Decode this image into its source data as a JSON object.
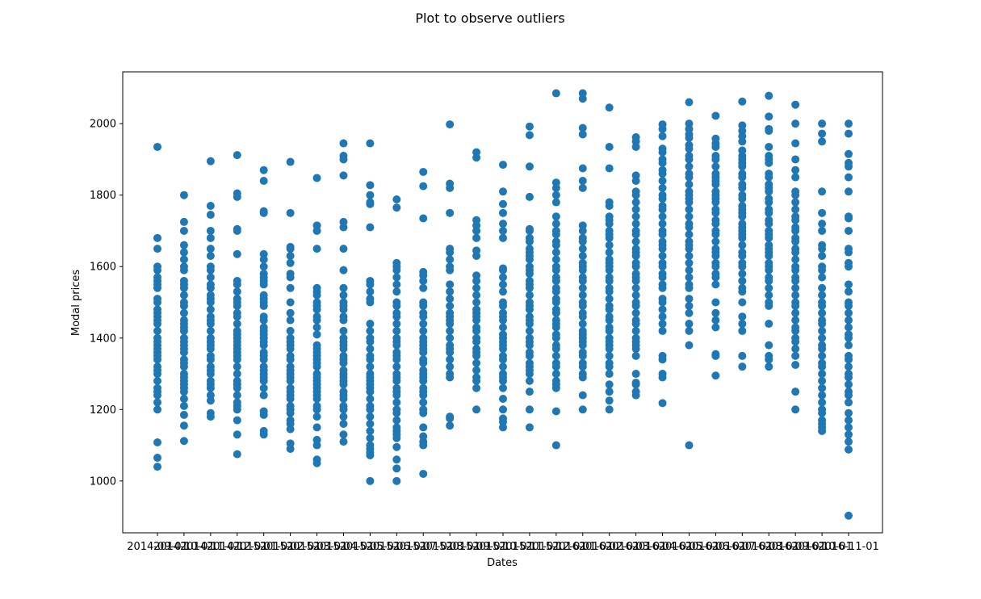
{
  "chart_data": {
    "type": "scatter",
    "title": "Plot to observe outliers",
    "xlabel": "Dates",
    "ylabel": "Modal prices",
    "ylim": [
      855,
      2145
    ],
    "yticks": [
      1000,
      1200,
      1400,
      1600,
      1800,
      2000
    ],
    "grid": false,
    "legend": "none",
    "color": "#1f77b4",
    "x_categories": [
      "2014-09-01",
      "2014-10-01",
      "2014-11-01",
      "2014-12-01",
      "2015-01-01",
      "2015-02-01",
      "2015-03-01",
      "2015-04-01",
      "2015-05-01",
      "2015-06-01",
      "2015-07-01",
      "2015-08-01",
      "2015-09-01",
      "2015-10-01",
      "2015-11-01",
      "2015-12-01",
      "2016-01-01",
      "2016-02-01",
      "2016-03-01",
      "2016-04-01",
      "2016-05-01",
      "2016-06-01",
      "2016-07-01",
      "2016-08-01",
      "2016-09-01",
      "2016-10-01",
      "2016-11-01"
    ],
    "x_tick_labels": [
      "2014-09-01",
      "2014-10-01",
      "2014-11-01",
      "2014-12-01",
      "2015-01-01",
      "2015-02-01",
      "2015-03-01",
      "2015-04-01",
      "2015-05-01",
      "2015-06-01",
      "2015-07-01",
      "2015-08-01",
      "2015-09-01",
      "2015-10-01",
      "2015-11-01",
      "2015-12-01",
      "2016-01-01",
      "2016-02-01",
      "2016-03-01",
      "2016-04-01",
      "2016-05-01",
      "2016-06-01",
      "2016-07-01",
      "2016-08-01",
      "2016-09-01",
      "2016-10-01",
      "2016-11-01"
    ],
    "columns": [
      {
        "x": "2014-09-01",
        "y": [
          1935,
          1680,
          1650,
          1600,
          1590,
          1570,
          1560,
          1550,
          1540,
          1510,
          1500,
          1480,
          1470,
          1460,
          1450,
          1440,
          1420,
          1400,
          1390,
          1380,
          1370,
          1360,
          1350,
          1340,
          1320,
          1310,
          1300,
          1280,
          1260,
          1250,
          1240,
          1220,
          1200,
          1108,
          1065,
          1040
        ]
      },
      {
        "x": "2014-10-01",
        "y": [
          1800,
          1725,
          1700,
          1660,
          1640,
          1620,
          1600,
          1590,
          1560,
          1550,
          1540,
          1520,
          1500,
          1490,
          1470,
          1450,
          1440,
          1430,
          1420,
          1400,
          1390,
          1380,
          1370,
          1360,
          1340,
          1330,
          1320,
          1300,
          1290,
          1280,
          1270,
          1260,
          1250,
          1230,
          1210,
          1185,
          1155,
          1112
        ]
      },
      {
        "x": "2014-11-01",
        "y": [
          1895,
          1770,
          1745,
          1700,
          1680,
          1650,
          1630,
          1600,
          1590,
          1570,
          1550,
          1540,
          1520,
          1510,
          1500,
          1480,
          1460,
          1450,
          1440,
          1420,
          1400,
          1390,
          1380,
          1370,
          1350,
          1340,
          1320,
          1310,
          1300,
          1280,
          1270,
          1260,
          1240,
          1225,
          1190,
          1180
        ]
      },
      {
        "x": "2014-12-01",
        "y": [
          1912,
          1805,
          1795,
          1705,
          1700,
          1635,
          1560,
          1550,
          1530,
          1510,
          1500,
          1490,
          1470,
          1460,
          1440,
          1420,
          1410,
          1400,
          1390,
          1380,
          1370,
          1360,
          1350,
          1340,
          1320,
          1300,
          1280,
          1270,
          1260,
          1240,
          1220,
          1210,
          1200,
          1170,
          1130,
          1075
        ]
      },
      {
        "x": "2015-01-01",
        "y": [
          1870,
          1840,
          1755,
          1750,
          1635,
          1620,
          1600,
          1580,
          1570,
          1560,
          1550,
          1520,
          1510,
          1500,
          1490,
          1460,
          1450,
          1430,
          1420,
          1410,
          1400,
          1390,
          1380,
          1360,
          1350,
          1340,
          1320,
          1310,
          1300,
          1290,
          1280,
          1260,
          1240,
          1195,
          1185,
          1140,
          1130
        ]
      },
      {
        "x": "2015-02-01",
        "y": [
          1893,
          1750,
          1655,
          1650,
          1630,
          1610,
          1580,
          1570,
          1540,
          1500,
          1470,
          1450,
          1420,
          1400,
          1390,
          1380,
          1370,
          1350,
          1340,
          1320,
          1310,
          1300,
          1290,
          1280,
          1260,
          1250,
          1240,
          1230,
          1210,
          1200,
          1190,
          1170,
          1160,
          1145,
          1105,
          1090
        ]
      },
      {
        "x": "2015-03-01",
        "y": [
          1848,
          1715,
          1700,
          1650,
          1540,
          1530,
          1520,
          1500,
          1490,
          1480,
          1460,
          1450,
          1430,
          1410,
          1380,
          1370,
          1360,
          1350,
          1340,
          1330,
          1320,
          1300,
          1290,
          1280,
          1270,
          1260,
          1250,
          1240,
          1230,
          1210,
          1200,
          1180,
          1150,
          1115,
          1100,
          1060,
          1050
        ]
      },
      {
        "x": "2015-04-01",
        "y": [
          1945,
          1910,
          1900,
          1855,
          1725,
          1710,
          1650,
          1590,
          1540,
          1520,
          1500,
          1490,
          1480,
          1460,
          1450,
          1420,
          1400,
          1390,
          1380,
          1370,
          1350,
          1340,
          1330,
          1310,
          1300,
          1290,
          1280,
          1270,
          1250,
          1240,
          1230,
          1210,
          1200,
          1180,
          1160,
          1130,
          1110
        ]
      },
      {
        "x": "2015-05-01",
        "y": [
          1945,
          1828,
          1800,
          1780,
          1775,
          1710,
          1560,
          1550,
          1530,
          1510,
          1500,
          1440,
          1420,
          1400,
          1390,
          1370,
          1350,
          1340,
          1320,
          1300,
          1290,
          1280,
          1270,
          1260,
          1250,
          1230,
          1210,
          1200,
          1180,
          1160,
          1140,
          1120,
          1100,
          1090,
          1080,
          1072,
          1000
        ]
      },
      {
        "x": "2015-06-01",
        "y": [
          1788,
          1765,
          1610,
          1600,
          1590,
          1570,
          1550,
          1530,
          1500,
          1490,
          1470,
          1460,
          1440,
          1420,
          1400,
          1390,
          1380,
          1360,
          1350,
          1340,
          1320,
          1300,
          1290,
          1280,
          1260,
          1250,
          1240,
          1220,
          1200,
          1190,
          1170,
          1150,
          1140,
          1130,
          1120,
          1095,
          1060,
          1035,
          1000
        ]
      },
      {
        "x": "2015-07-01",
        "y": [
          1865,
          1825,
          1735,
          1585,
          1575,
          1560,
          1540,
          1500,
          1490,
          1470,
          1460,
          1440,
          1420,
          1400,
          1390,
          1380,
          1370,
          1360,
          1340,
          1330,
          1310,
          1300,
          1290,
          1280,
          1260,
          1250,
          1240,
          1220,
          1200,
          1190,
          1150,
          1125,
          1110,
          1100,
          1020
        ]
      },
      {
        "x": "2015-08-01",
        "y": [
          1998,
          1832,
          1820,
          1750,
          1650,
          1640,
          1620,
          1600,
          1590,
          1550,
          1530,
          1510,
          1490,
          1470,
          1460,
          1450,
          1440,
          1420,
          1400,
          1380,
          1370,
          1360,
          1340,
          1320,
          1300,
          1290,
          1180,
          1175,
          1155
        ]
      },
      {
        "x": "2015-09-01",
        "y": [
          1920,
          1905,
          1730,
          1715,
          1700,
          1680,
          1645,
          1630,
          1575,
          1560,
          1540,
          1520,
          1500,
          1480,
          1470,
          1460,
          1450,
          1430,
          1420,
          1400,
          1390,
          1370,
          1360,
          1350,
          1330,
          1310,
          1290,
          1280,
          1260,
          1200
        ]
      },
      {
        "x": "2015-10-01",
        "y": [
          1885,
          1810,
          1775,
          1750,
          1720,
          1700,
          1680,
          1595,
          1590,
          1570,
          1550,
          1530,
          1500,
          1490,
          1470,
          1460,
          1450,
          1430,
          1410,
          1400,
          1390,
          1380,
          1370,
          1350,
          1340,
          1320,
          1300,
          1290,
          1280,
          1260,
          1230,
          1200,
          1175,
          1165,
          1150
        ]
      },
      {
        "x": "2015-11-01",
        "y": [
          1992,
          1968,
          1880,
          1795,
          1705,
          1700,
          1680,
          1670,
          1650,
          1640,
          1630,
          1620,
          1600,
          1590,
          1580,
          1560,
          1550,
          1540,
          1520,
          1500,
          1490,
          1480,
          1460,
          1450,
          1440,
          1420,
          1400,
          1390,
          1380,
          1360,
          1350,
          1330,
          1320,
          1310,
          1300,
          1280,
          1250,
          1200,
          1150
        ]
      },
      {
        "x": "2015-12-01",
        "y": [
          2085,
          1835,
          1820,
          1800,
          1780,
          1740,
          1720,
          1700,
          1690,
          1670,
          1660,
          1640,
          1620,
          1600,
          1590,
          1570,
          1560,
          1540,
          1530,
          1510,
          1500,
          1480,
          1470,
          1450,
          1440,
          1430,
          1410,
          1400,
          1380,
          1370,
          1350,
          1330,
          1320,
          1300,
          1280,
          1270,
          1260,
          1195,
          1100
        ]
      },
      {
        "x": "2016-01-01",
        "y": [
          2085,
          2070,
          1988,
          1970,
          1875,
          1840,
          1820,
          1715,
          1700,
          1680,
          1670,
          1650,
          1630,
          1610,
          1600,
          1590,
          1570,
          1560,
          1540,
          1520,
          1500,
          1490,
          1470,
          1460,
          1440,
          1420,
          1410,
          1400,
          1390,
          1380,
          1360,
          1350,
          1330,
          1320,
          1300,
          1290,
          1240,
          1200
        ]
      },
      {
        "x": "2016-02-01",
        "y": [
          2045,
          1935,
          1875,
          1780,
          1770,
          1740,
          1730,
          1720,
          1700,
          1690,
          1680,
          1660,
          1640,
          1620,
          1610,
          1600,
          1590,
          1570,
          1560,
          1540,
          1530,
          1510,
          1490,
          1480,
          1460,
          1450,
          1430,
          1420,
          1400,
          1390,
          1380,
          1370,
          1350,
          1330,
          1320,
          1300,
          1270,
          1250,
          1225,
          1200
        ]
      },
      {
        "x": "2016-03-01",
        "y": [
          1962,
          1950,
          1935,
          1855,
          1840,
          1810,
          1800,
          1780,
          1760,
          1740,
          1720,
          1700,
          1690,
          1670,
          1650,
          1640,
          1630,
          1610,
          1600,
          1580,
          1570,
          1560,
          1540,
          1520,
          1500,
          1490,
          1470,
          1450,
          1440,
          1420,
          1400,
          1390,
          1380,
          1370,
          1350,
          1300,
          1275,
          1270,
          1250,
          1240
        ]
      },
      {
        "x": "2016-04-01",
        "y": [
          1998,
          1985,
          1965,
          1930,
          1920,
          1900,
          1890,
          1870,
          1860,
          1840,
          1820,
          1800,
          1790,
          1770,
          1760,
          1740,
          1720,
          1700,
          1690,
          1670,
          1660,
          1650,
          1630,
          1610,
          1600,
          1580,
          1570,
          1550,
          1540,
          1510,
          1500,
          1480,
          1460,
          1440,
          1420,
          1350,
          1340,
          1300,
          1290,
          1218
        ]
      },
      {
        "x": "2016-05-01",
        "y": [
          2060,
          2000,
          1985,
          1970,
          1960,
          1940,
          1930,
          1910,
          1900,
          1880,
          1860,
          1850,
          1830,
          1810,
          1800,
          1790,
          1780,
          1760,
          1740,
          1720,
          1710,
          1690,
          1670,
          1660,
          1650,
          1630,
          1610,
          1590,
          1570,
          1550,
          1540,
          1510,
          1490,
          1470,
          1440,
          1420,
          1380,
          1100
        ]
      },
      {
        "x": "2016-06-01",
        "y": [
          2022,
          1958,
          1945,
          1935,
          1910,
          1900,
          1880,
          1860,
          1850,
          1840,
          1830,
          1810,
          1800,
          1790,
          1780,
          1760,
          1750,
          1730,
          1720,
          1700,
          1690,
          1670,
          1650,
          1640,
          1630,
          1610,
          1600,
          1580,
          1570,
          1550,
          1500,
          1470,
          1450,
          1430,
          1355,
          1350,
          1295
        ]
      },
      {
        "x": "2016-07-01",
        "y": [
          2062,
          1995,
          1980,
          1965,
          1950,
          1925,
          1910,
          1900,
          1890,
          1880,
          1860,
          1850,
          1830,
          1820,
          1800,
          1790,
          1770,
          1760,
          1750,
          1740,
          1720,
          1710,
          1700,
          1690,
          1680,
          1660,
          1640,
          1630,
          1610,
          1600,
          1580,
          1560,
          1540,
          1530,
          1500,
          1460,
          1440,
          1420,
          1350,
          1320
        ]
      },
      {
        "x": "2016-08-01",
        "y": [
          2078,
          2020,
          1985,
          1980,
          1935,
          1910,
          1900,
          1890,
          1860,
          1850,
          1830,
          1820,
          1810,
          1790,
          1780,
          1760,
          1750,
          1730,
          1720,
          1700,
          1690,
          1680,
          1660,
          1650,
          1640,
          1630,
          1610,
          1600,
          1590,
          1570,
          1560,
          1540,
          1520,
          1500,
          1490,
          1440,
          1380,
          1350,
          1340,
          1320
        ]
      },
      {
        "x": "2016-09-01",
        "y": [
          2053,
          2000,
          1945,
          1900,
          1870,
          1850,
          1810,
          1800,
          1780,
          1760,
          1740,
          1730,
          1710,
          1700,
          1680,
          1670,
          1650,
          1640,
          1620,
          1600,
          1590,
          1570,
          1560,
          1540,
          1520,
          1500,
          1490,
          1470,
          1450,
          1430,
          1420,
          1400,
          1390,
          1370,
          1350,
          1325,
          1250,
          1200
        ]
      },
      {
        "x": "2016-10-01",
        "y": [
          2000,
          1972,
          1950,
          1810,
          1750,
          1720,
          1700,
          1660,
          1650,
          1630,
          1600,
          1590,
          1570,
          1540,
          1520,
          1500,
          1490,
          1470,
          1450,
          1440,
          1420,
          1400,
          1380,
          1370,
          1350,
          1330,
          1320,
          1300,
          1280,
          1260,
          1240,
          1220,
          1200,
          1190,
          1170,
          1160,
          1150,
          1140
        ]
      },
      {
        "x": "2016-11-01",
        "y": [
          2000,
          1972,
          1915,
          1890,
          1880,
          1850,
          1810,
          1740,
          1735,
          1700,
          1650,
          1640,
          1610,
          1600,
          1550,
          1530,
          1500,
          1490,
          1470,
          1450,
          1430,
          1410,
          1400,
          1380,
          1350,
          1340,
          1320,
          1300,
          1290,
          1270,
          1250,
          1240,
          1220,
          1190,
          1170,
          1150,
          1130,
          1110,
          1088,
          903
        ]
      }
    ]
  }
}
